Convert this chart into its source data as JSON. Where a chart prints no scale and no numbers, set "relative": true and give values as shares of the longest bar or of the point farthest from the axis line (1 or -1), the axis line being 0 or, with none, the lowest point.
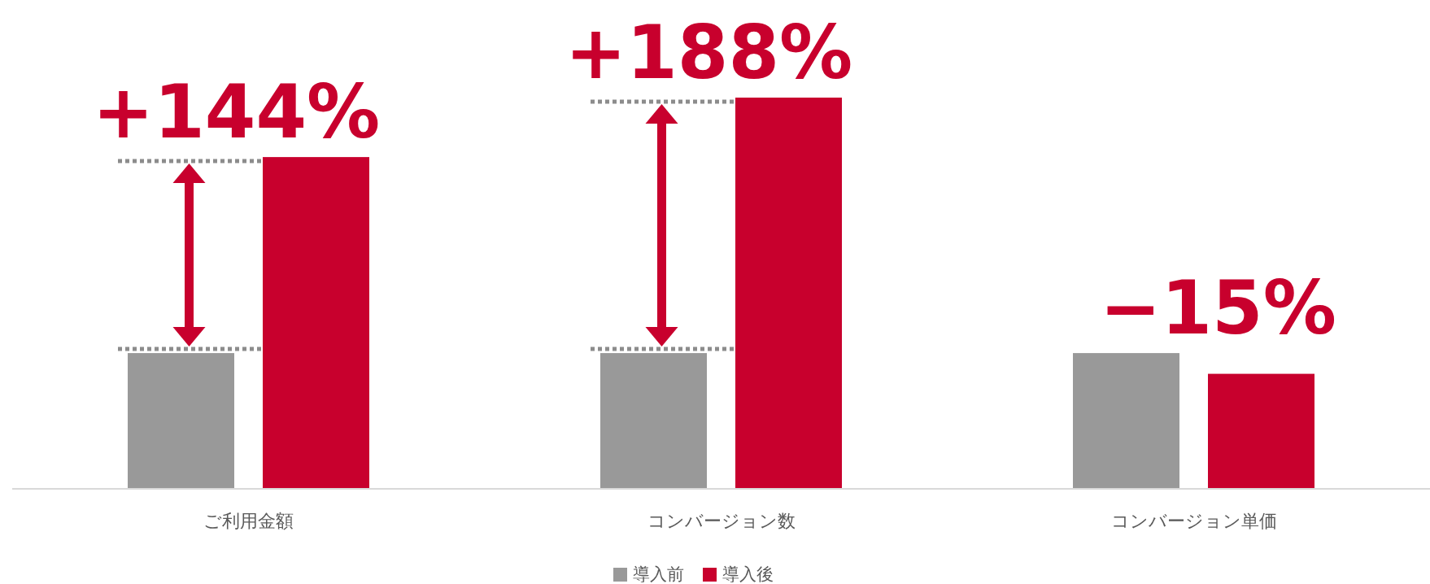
{
  "chart_data": {
    "type": "bar",
    "relative": true,
    "categories": [
      "ご利用金額",
      "コンバージョン数",
      "コンバージョン単価"
    ],
    "series": [
      {
        "name": "導入前",
        "color": "#999999",
        "values": [
          0.347,
          0.347,
          0.347
        ]
      },
      {
        "name": "導入後",
        "color": "#c8002d",
        "values": [
          0.848,
          1,
          0.294
        ]
      }
    ],
    "annotations": [
      "+144%",
      "+188%",
      "−15%"
    ],
    "legend": "bottom"
  }
}
